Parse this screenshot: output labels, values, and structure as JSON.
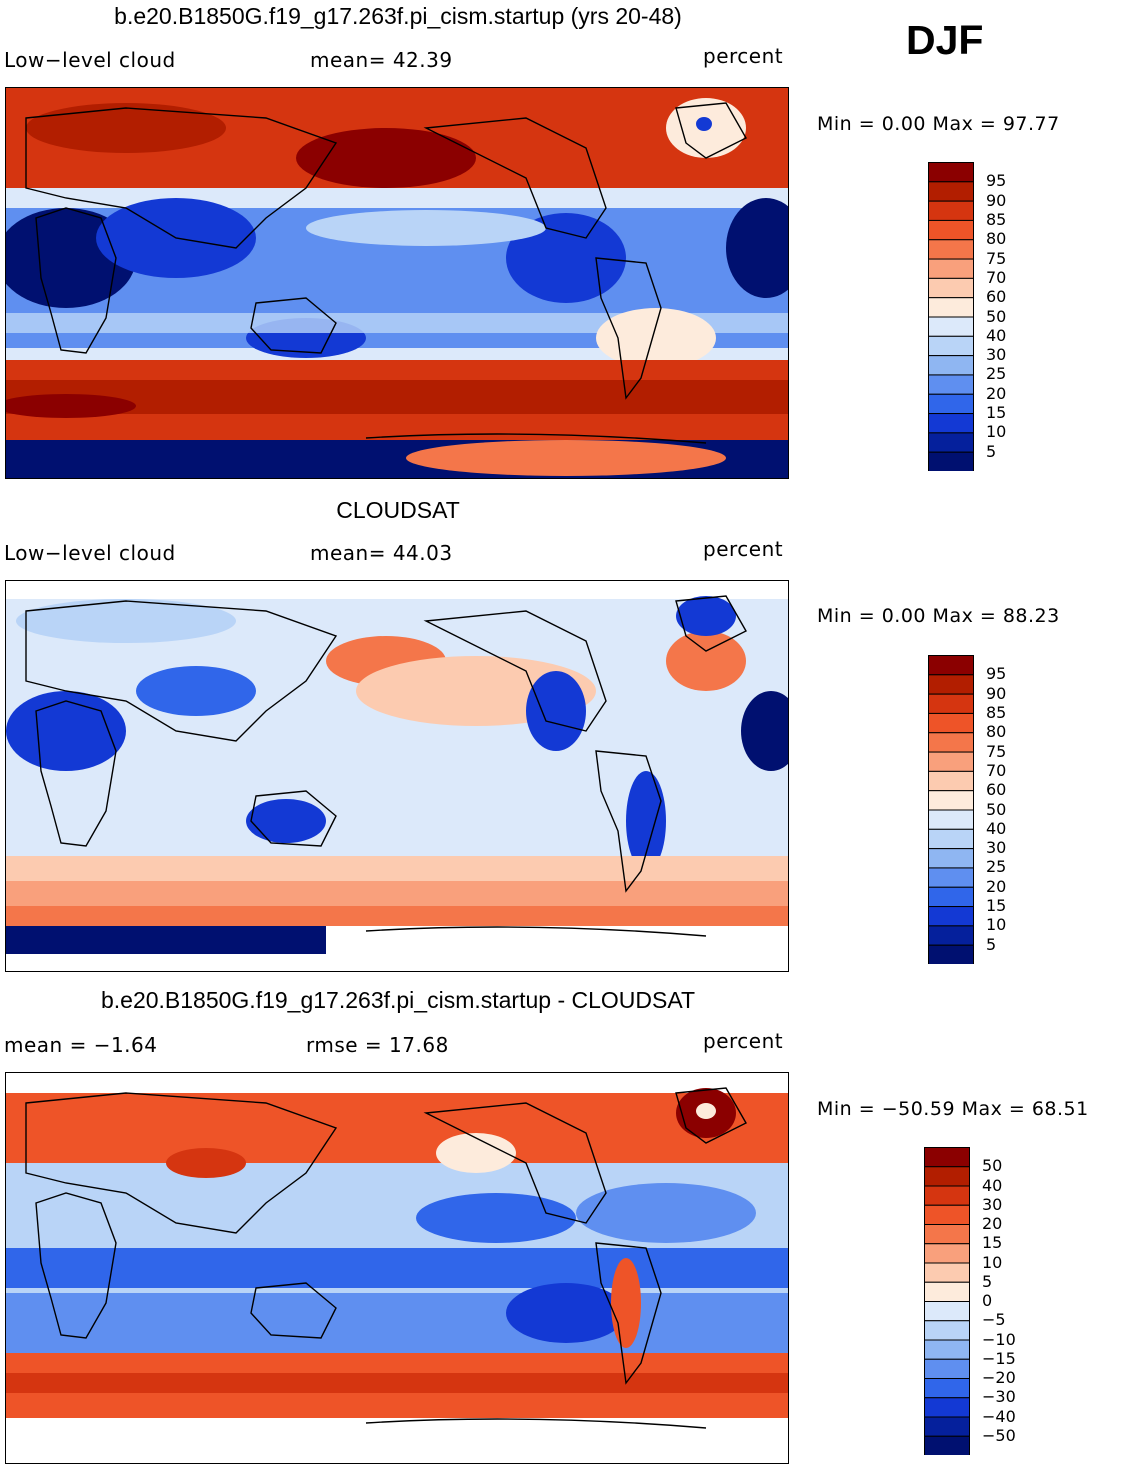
{
  "season": "DJF",
  "panels": [
    {
      "id": "model",
      "title": "b.e20.B1850G.f19_g17.263f.pi_cism.startup (yrs 20-48)",
      "left_label": "Low−level cloud",
      "stat1": "mean=   42.39",
      "units": "percent",
      "minmax": "Min  =     0.00  Max  =    97.77",
      "colorbar": [
        "95",
        "90",
        "85",
        "80",
        "75",
        "70",
        "60",
        "50",
        "40",
        "30",
        "25",
        "20",
        "15",
        "10",
        "5"
      ]
    },
    {
      "id": "obs",
      "title": "CLOUDSAT",
      "left_label": "Low−level cloud",
      "stat1": "mean=   44.03",
      "units": "percent",
      "minmax": "Min  =     0.00  Max  =    88.23",
      "colorbar": [
        "95",
        "90",
        "85",
        "80",
        "75",
        "70",
        "60",
        "50",
        "40",
        "30",
        "25",
        "20",
        "15",
        "10",
        "5"
      ]
    },
    {
      "id": "diff",
      "title": "b.e20.B1850G.f19_g17.263f.pi_cism.startup - CLOUDSAT",
      "left_label": "mean  =    −1.64",
      "stat1": "rmse  =    17.68",
      "units": "percent",
      "minmax": "Min  = −50.59  Max  =    68.51",
      "colorbar": [
        "50",
        "40",
        "30",
        "20",
        "15",
        "10",
        "5",
        "0",
        "−5",
        "−10",
        "−15",
        "−20",
        "−30",
        "−40",
        "−50"
      ]
    }
  ],
  "colors": {
    "ramp": [
      "#8b0000",
      "#b21e00",
      "#d53510",
      "#ee5428",
      "#f4764a",
      "#f9a07c",
      "#fccbb0",
      "#fdebdc",
      "#dce9fa",
      "#b9d4f7",
      "#8fb6f2",
      "#5f8ff0",
      "#3066ea",
      "#1339d4",
      "#05209c",
      "#001070"
    ]
  }
}
